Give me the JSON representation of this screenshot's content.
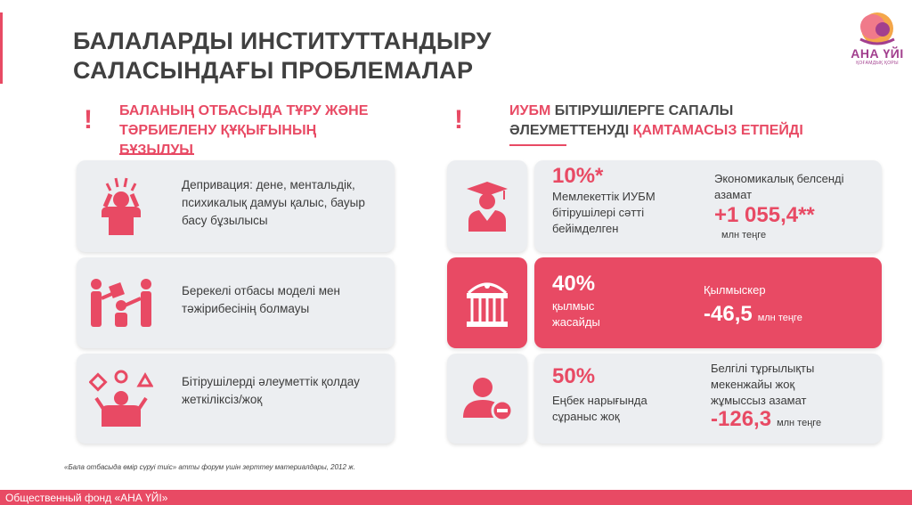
{
  "title": {
    "line1": "БАЛАЛАРДЫ ИНСТИТУТТАНДЫРУ",
    "line2": "САЛАСЫНДАҒЫ ПРОБЛЕМАЛАР"
  },
  "logo": {
    "name": "АНА ҮЙІ",
    "sub": "ҚОҒАМДЫҚ ҚОРЫ"
  },
  "left": {
    "exclamation": "!",
    "heading_line1": "БАЛАНЫҢ ОТБАСЫДА ТҰРУ ЖӘНЕ",
    "heading_line2": "ТӘРБИЕЛЕНУ ҚҰҚЫҒЫНЫҢ",
    "heading_line3": "БҰЗЫЛУЫ",
    "cards": [
      {
        "icon": "stressed-person-icon",
        "text": "Депривация: дене, ментальдік, психикалық дамуы қалыс, бауыр басу бұзылысы"
      },
      {
        "icon": "family-icon",
        "text": "Берекелі отбасы моделі мен тәжірибесінің болмауы"
      },
      {
        "icon": "confused-person-icon",
        "text": "Бітірушілерді әлеуметтік қолдау жеткіліксіз/жоқ"
      }
    ]
  },
  "right": {
    "exclamation": "!",
    "heading_red": "ИУБМ",
    "heading_dark1": " БІТІРУШІЛЕРГЕ САПАЛЫ",
    "heading_dark2": "ӘЛЕУМЕТТЕНУДІ ",
    "heading_red2": "ҚАМТАМАСЫЗ  ЕТПЕЙДІ",
    "cards": [
      {
        "icon": "graduate-icon",
        "stat": "10%*",
        "desc": "Мемлекеттік ИУБМ бітірушілері сәтті бейімделген",
        "label": "Экономикалық белсенді азамат",
        "value": "+1 055,4**",
        "unit": "млн теңге"
      },
      {
        "icon": "prison-icon",
        "stat": "40%",
        "desc": "қылмыс жасайды",
        "label": "Қылмыскер",
        "value": "-46,5",
        "unit": "млн теңге"
      },
      {
        "icon": "user-minus-icon",
        "stat": "50%",
        "desc": "Еңбек нарығында сұраныс жоқ",
        "label": "Белгілі тұрғылықты мекенжайы жоқ жұмыссыз азамат",
        "value": "-126,3",
        "unit": "млн теңге"
      }
    ]
  },
  "footnote": "«Бала отбасыда өмір сүруі тиіс» атты форум үшін зерттеу материалдары, 2012 ж.",
  "footer": "Общественный фонд «АНА ҮЙІ»",
  "colors": {
    "accent": "#e84a64",
    "card": "#eceef1",
    "title": "#404040",
    "logo": "#a23f8e"
  }
}
